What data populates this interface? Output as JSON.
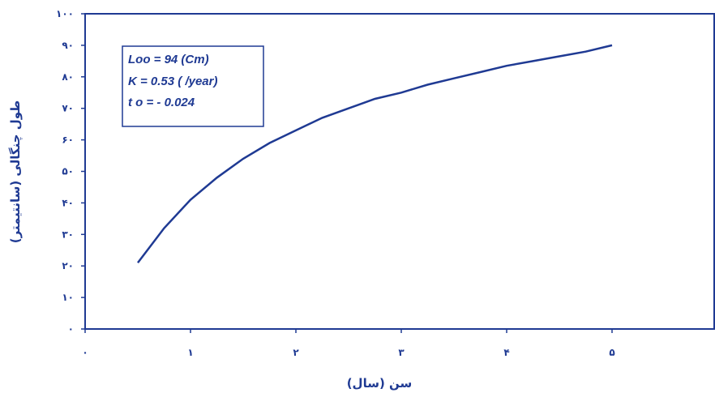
{
  "colors": {
    "accent": "#1f3a93",
    "background": "#ffffff"
  },
  "chart_data": {
    "type": "line",
    "xlabel": "سن (سال)",
    "ylabel": "طول چنگالی (سانتیمتر)",
    "xlim": [
      0,
      6
    ],
    "ylim": [
      0,
      100
    ],
    "x_ticks": [
      {
        "value": 0,
        "label": "۰"
      },
      {
        "value": 1,
        "label": "۱"
      },
      {
        "value": 2,
        "label": "۲"
      },
      {
        "value": 3,
        "label": "۳"
      },
      {
        "value": 4,
        "label": "۴"
      },
      {
        "value": 5,
        "label": "۵"
      }
    ],
    "y_ticks": [
      {
        "value": 0,
        "label": "۰"
      },
      {
        "value": 10,
        "label": "۱۰"
      },
      {
        "value": 20,
        "label": "۲۰"
      },
      {
        "value": 30,
        "label": "۳۰"
      },
      {
        "value": 40,
        "label": "۴۰"
      },
      {
        "value": 50,
        "label": "۵۰"
      },
      {
        "value": 60,
        "label": "۶۰"
      },
      {
        "value": 70,
        "label": "۷۰"
      },
      {
        "value": 80,
        "label": "۸۰"
      },
      {
        "value": 90,
        "label": "۹۰"
      },
      {
        "value": 100,
        "label": "۱۰۰"
      }
    ],
    "series": [
      {
        "x": [
          0.5,
          0.75,
          1.0,
          1.25,
          1.5,
          1.75,
          2.0,
          2.25,
          2.5,
          2.75,
          3.0,
          3.25,
          3.5,
          3.75,
          4.0,
          4.25,
          4.5,
          4.75,
          5.0
        ],
        "y": [
          21,
          32,
          41,
          48,
          54,
          59,
          63,
          67,
          70,
          73,
          75,
          77.5,
          79.5,
          81.5,
          83.5,
          85,
          86.5,
          88,
          90
        ]
      }
    ],
    "annotation": [
      "Loo = 94 (Cm)",
      "K =  0.53  ( /year)",
      "t o = -  0.024"
    ],
    "grid": false,
    "legend": "top-left"
  }
}
